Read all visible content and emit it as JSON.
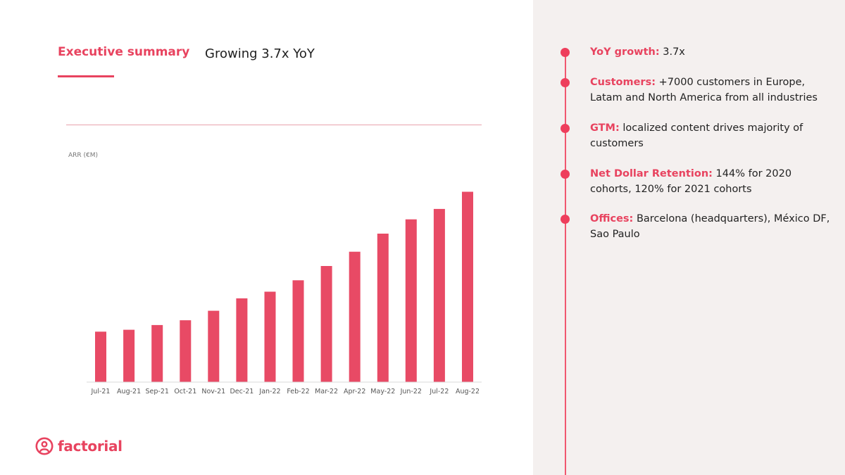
{
  "header": {
    "title": "Executive summary",
    "subtitle": "Growing 3.7x YoY"
  },
  "colors": {
    "accent": "#e8435f",
    "bar": "#e84a65",
    "right_panel_bg": "#f4f0ef",
    "timeline": "#f0586f"
  },
  "chart_data": {
    "type": "bar",
    "title": "",
    "xlabel": "",
    "ylabel": "ARR (€M)",
    "categories": [
      "Jul-21",
      "Aug-21",
      "Sep-21",
      "Oct-21",
      "Nov-21",
      "Dec-21",
      "Jan-22",
      "Feb-22",
      "Mar-22",
      "Apr-22",
      "May-22",
      "Jun-22",
      "Jul-22",
      "Aug-22"
    ],
    "values": [
      26.5,
      27.5,
      30.0,
      32.5,
      37.5,
      44.0,
      47.5,
      53.5,
      61.0,
      68.5,
      78.0,
      85.5,
      91.0,
      100.0
    ],
    "ylim": [
      0,
      105
    ],
    "grid": false,
    "legend": "none"
  },
  "bullets": [
    {
      "label": "YoY growth:",
      "text": " 3.7x"
    },
    {
      "label": "Customers:",
      "text": " +7000 customers in Europe, Latam and North America from all industries"
    },
    {
      "label": "GTM:",
      "text": " localized content drives majority of customers"
    },
    {
      "label": "Net Dollar Retention:",
      "text": " 144% for 2020 cohorts, 120% for 2021 cohorts"
    },
    {
      "label": "Offices:",
      "text": " Barcelona (headquarters), México DF, Sao Paulo"
    }
  ],
  "logo": {
    "text": "factorial",
    "icon": "person-circle-icon"
  }
}
